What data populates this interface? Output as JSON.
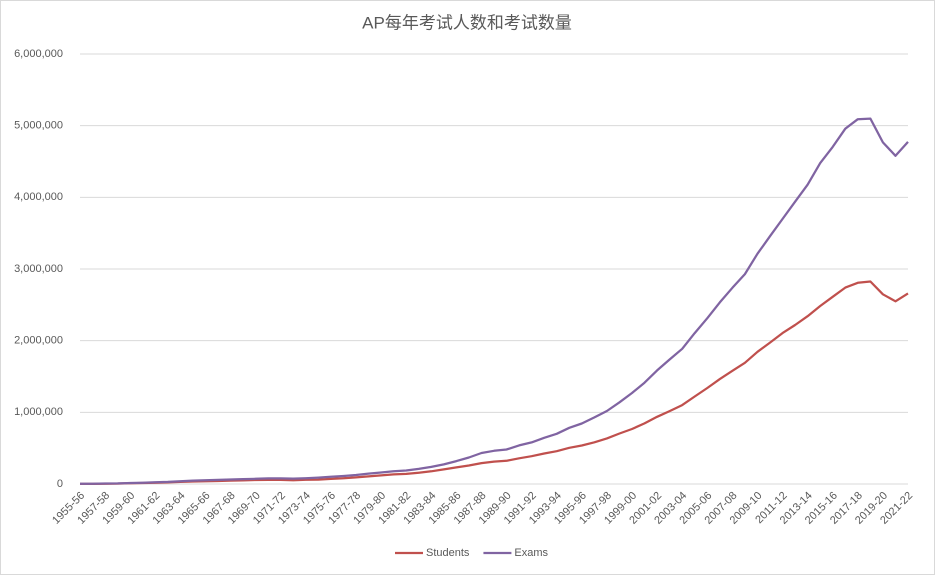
{
  "chart_data": {
    "type": "line",
    "title": "AP每年考试人数和考试数量",
    "categories": [
      "1955-56",
      null,
      "1957-58",
      null,
      "1959-60",
      null,
      "1961-62",
      null,
      "1963-64",
      null,
      "1965-66",
      null,
      "1967-68",
      null,
      "1969-70",
      null,
      "1971-72",
      null,
      "1973-74",
      null,
      "1975-76",
      null,
      "1977-78",
      null,
      "1979-80",
      null,
      "1981-82",
      null,
      "1983-84",
      null,
      "1985-86",
      null,
      "1987-88",
      null,
      "1989-90",
      null,
      "1991-92",
      null,
      "1993-94",
      null,
      "1995-96",
      null,
      "1997-98",
      null,
      "1999-00",
      null,
      "2001-02",
      null,
      "2003-04",
      null,
      "2005-06",
      null,
      "2007-08",
      null,
      "2009-10",
      null,
      "2011-12",
      null,
      "2013-14",
      null,
      "2015-16",
      null,
      "2017-18",
      null,
      "2019-20",
      null,
      "2021-22"
    ],
    "series": [
      {
        "name": "Students",
        "color": "#c0504d",
        "values": [
          1229,
          2000,
          3700,
          5800,
          10500,
          13300,
          17600,
          21800,
          28900,
          34300,
          38200,
          42400,
          46900,
          50100,
          55400,
          57900,
          57000,
          53000,
          58000,
          60900,
          70600,
          81200,
          92700,
          106000,
          119900,
          133700,
          141600,
          157000,
          177000,
          204000,
          231000,
          258000,
          292000,
          313000,
          324000,
          359000,
          388000,
          426000,
          458000,
          505000,
          537000,
          582000,
          636000,
          704000,
          768000,
          845000,
          937000,
          1017000,
          1101000,
          1221000,
          1339000,
          1464000,
          1580000,
          1691000,
          1845000,
          1973000,
          2105000,
          2218000,
          2342000,
          2484000,
          2612000,
          2741000,
          2808000,
          2826000,
          2647000,
          2550000,
          2660000
        ]
      },
      {
        "name": "Exams",
        "color": "#8064a2",
        "values": [
          2199,
          3800,
          6800,
          8900,
          14200,
          18600,
          24000,
          29300,
          39700,
          47300,
          51700,
          57600,
          63300,
          67900,
          72000,
          78000,
          78500,
          76000,
          80600,
          89100,
          99800,
          112000,
          125000,
          145000,
          160500,
          178000,
          189000,
          211000,
          239000,
          273000,
          319000,
          370000,
          432000,
          463000,
          481000,
          538000,
          581000,
          645000,
          701000,
          784000,
          844000,
          930000,
          1018000,
          1140000,
          1270000,
          1414000,
          1585000,
          1737000,
          1887000,
          2106000,
          2313000,
          2534000,
          2737000,
          2929000,
          3214000,
          3458000,
          3698000,
          3939000,
          4176000,
          4477000,
          4704000,
          4958000,
          5090000,
          5098000,
          4766000,
          4580000,
          4774000
        ]
      }
    ],
    "ylim": [
      0,
      6000000
    ],
    "yticks": [
      0,
      {
        "value": 1000000,
        "label": "1,000,000"
      },
      {
        "value": 2000000,
        "label": "2,000,000"
      },
      {
        "value": 3000000,
        "label": "3,000,000"
      },
      {
        "value": 4000000,
        "label": "4,000,000"
      },
      {
        "value": 5000000,
        "label": "5,000,000"
      },
      {
        "value": 6000000,
        "label": "6,000,000"
      }
    ],
    "grid": true,
    "legend": "bottom"
  }
}
